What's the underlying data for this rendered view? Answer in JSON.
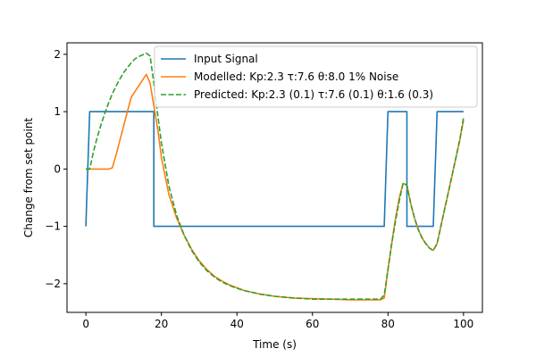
{
  "chart_data": {
    "type": "line",
    "title": "",
    "xlabel": "Time (s)",
    "ylabel": "Change from set point",
    "xlim": [
      -5,
      105
    ],
    "ylim": [
      -2.5,
      2.2
    ],
    "xticks": [
      0,
      20,
      40,
      60,
      80,
      100
    ],
    "yticks": [
      -2,
      -1,
      0,
      1,
      2
    ],
    "xtick_labels": [
      "0",
      "20",
      "40",
      "60",
      "80",
      "100"
    ],
    "ytick_labels": [
      "−2",
      "−1",
      "0",
      "1",
      "2"
    ],
    "grid": false,
    "legend_position": "top-right",
    "series": [
      {
        "name": "Input Signal",
        "color": "#1f77b4",
        "style": "solid",
        "x": [
          0,
          1,
          1,
          17,
          18,
          18,
          79,
          80,
          80,
          84,
          85,
          85,
          92,
          93,
          93,
          100
        ],
        "y": [
          -1,
          1,
          1,
          1,
          1,
          -1,
          -1,
          1,
          1,
          1,
          1,
          -1,
          -1,
          1,
          1,
          1
        ]
      },
      {
        "name": "Modelled: Kp:2.3 τ:7.6 θ:8.0  1% Noise",
        "color": "#ff7f0e",
        "style": "solid",
        "x": [
          0,
          2,
          4,
          6,
          7,
          8,
          9,
          10,
          11,
          12,
          13,
          14,
          15,
          16,
          17,
          18,
          19,
          20,
          22,
          24,
          26,
          28,
          30,
          32,
          34,
          36,
          38,
          40,
          42,
          44,
          46,
          48,
          50,
          55,
          60,
          65,
          70,
          75,
          78,
          79,
          80,
          81,
          82,
          83,
          84,
          85,
          86,
          87,
          88,
          89,
          90,
          91,
          92,
          93,
          94,
          95,
          96,
          97,
          98,
          99,
          100
        ],
        "y": [
          0,
          0,
          0,
          0,
          0.02,
          0.25,
          0.5,
          0.75,
          1.0,
          1.25,
          1.35,
          1.45,
          1.55,
          1.65,
          1.5,
          1.1,
          0.7,
          0.2,
          -0.45,
          -0.85,
          -1.15,
          -1.4,
          -1.6,
          -1.75,
          -1.87,
          -1.95,
          -2.02,
          -2.07,
          -2.12,
          -2.15,
          -2.18,
          -2.2,
          -2.22,
          -2.25,
          -2.26,
          -2.27,
          -2.28,
          -2.28,
          -2.28,
          -2.25,
          -1.75,
          -1.3,
          -0.85,
          -0.5,
          -0.25,
          -0.28,
          -0.6,
          -0.85,
          -1.05,
          -1.2,
          -1.3,
          -1.38,
          -1.42,
          -1.3,
          -1.0,
          -0.7,
          -0.4,
          -0.1,
          0.2,
          0.5,
          0.85
        ]
      },
      {
        "name": "Predicted: Kp:2.3 (0.1) τ:7.6 (0.1) θ:1.6 (0.3)",
        "color": "#2ca02c",
        "style": "dashed",
        "x": [
          0,
          1,
          2,
          3,
          4,
          5,
          6,
          7,
          8,
          9,
          10,
          11,
          12,
          13,
          14,
          15,
          16,
          17,
          18,
          19,
          20,
          22,
          24,
          26,
          28,
          30,
          32,
          34,
          36,
          38,
          40,
          42,
          44,
          46,
          48,
          50,
          55,
          60,
          65,
          70,
          75,
          78,
          79,
          80,
          81,
          82,
          83,
          84,
          85,
          86,
          87,
          88,
          89,
          90,
          91,
          92,
          93,
          94,
          95,
          96,
          97,
          98,
          99,
          100
        ],
        "y": [
          0,
          0,
          0.3,
          0.55,
          0.77,
          0.97,
          1.15,
          1.31,
          1.45,
          1.57,
          1.68,
          1.77,
          1.85,
          1.92,
          1.96,
          1.99,
          2.02,
          1.97,
          1.5,
          0.95,
          0.45,
          -0.3,
          -0.8,
          -1.15,
          -1.42,
          -1.62,
          -1.77,
          -1.88,
          -1.97,
          -2.03,
          -2.08,
          -2.12,
          -2.15,
          -2.18,
          -2.2,
          -2.22,
          -2.25,
          -2.27,
          -2.27,
          -2.27,
          -2.27,
          -2.27,
          -2.2,
          -1.75,
          -1.3,
          -0.9,
          -0.55,
          -0.25,
          -0.28,
          -0.6,
          -0.85,
          -1.05,
          -1.2,
          -1.3,
          -1.38,
          -1.42,
          -1.3,
          -1.0,
          -0.7,
          -0.4,
          -0.1,
          0.2,
          0.5,
          0.9
        ]
      }
    ]
  }
}
